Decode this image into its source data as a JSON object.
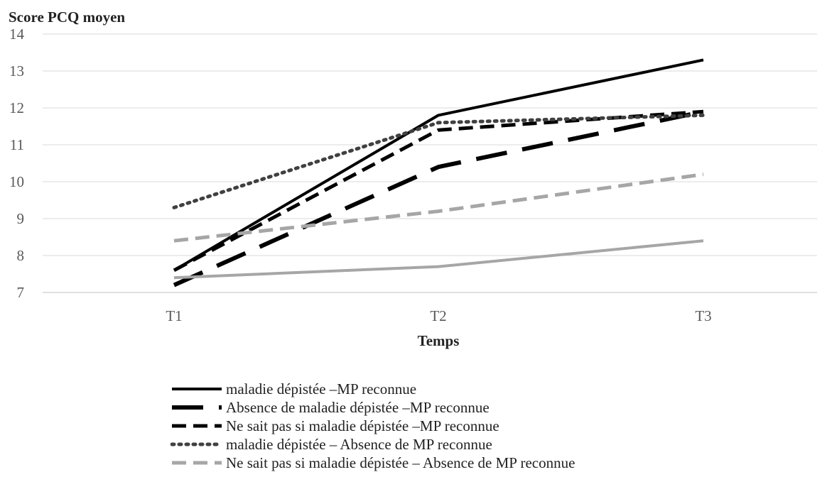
{
  "chart_data": {
    "type": "line",
    "ylabel": "Score PCQ moyen",
    "xlabel": "Temps",
    "categories": [
      "T1",
      "T2",
      "T3"
    ],
    "ylim": [
      7,
      14
    ],
    "yticks": [
      7,
      8,
      9,
      10,
      11,
      12,
      13,
      14
    ],
    "grid": true,
    "legend_position": "bottom",
    "series": [
      {
        "name": "maladie dépistée –MP reconnue",
        "values": [
          7.6,
          11.8,
          13.3
        ],
        "color": "#000000",
        "style": "solid"
      },
      {
        "name": "Absence de maladie dépistée –MP reconnue",
        "values": [
          7.2,
          10.4,
          11.9
        ],
        "color": "#000000",
        "style": "longdash"
      },
      {
        "name": "Ne sait pas si maladie dépistée –MP reconnue",
        "values": [
          7.6,
          11.4,
          11.9
        ],
        "color": "#000000",
        "style": "dash"
      },
      {
        "name": "maladie dépistée – Absence de MP reconnue",
        "values": [
          9.3,
          11.6,
          11.8
        ],
        "color": "#404040",
        "style": "dot"
      },
      {
        "name": "Ne sait pas si maladie dépistée – Absence de MP reconnue",
        "values": [
          8.4,
          9.2,
          10.2
        ],
        "color": "#a6a6a6",
        "style": "dash"
      },
      {
        "name": "",
        "values": [
          7.4,
          7.7,
          8.4
        ],
        "color": "#a6a6a6",
        "style": "solid"
      }
    ]
  }
}
